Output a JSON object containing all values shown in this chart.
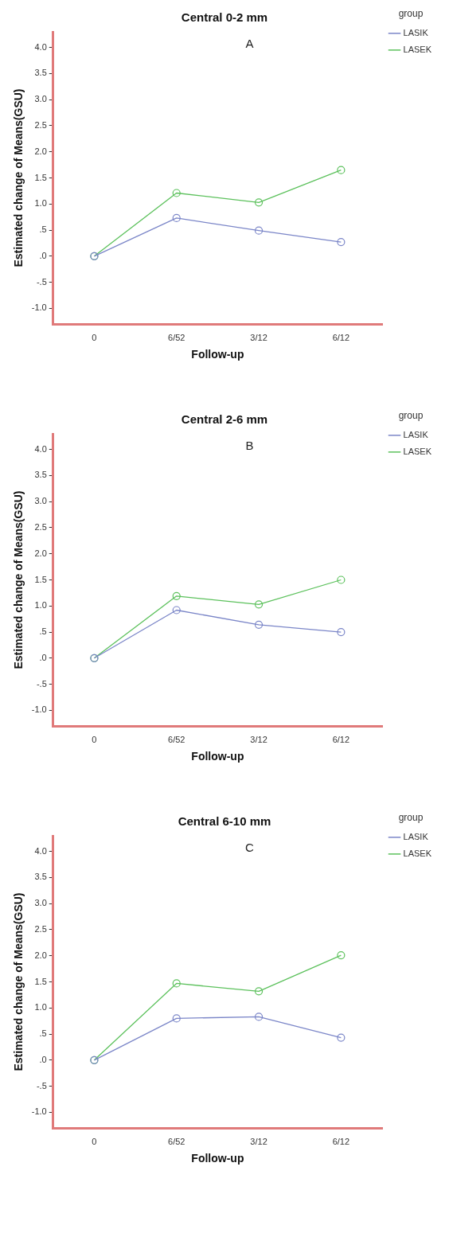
{
  "chart_data": [
    {
      "type": "line",
      "title": "Central 0-2 mm",
      "xlabel": "Follow-up",
      "ylabel": "Estimated change of Means(GSU)",
      "legend_title": "group",
      "annotations": [
        "A"
      ],
      "categories": [
        "0",
        "6/52",
        "3/12",
        "6/12"
      ],
      "series": [
        {
          "name": "LASIK",
          "color": "#7b86c8",
          "values": [
            0,
            0.73,
            0.49,
            0.27
          ]
        },
        {
          "name": "LASEK",
          "color": "#5cc15c",
          "values": [
            0,
            1.21,
            1.03,
            1.65
          ]
        }
      ],
      "ylim": [
        -1.3,
        4.3
      ],
      "yticks": [
        {
          "value": -1,
          "label": "-1.0"
        },
        {
          "value": -0.5,
          "label": "-.5"
        },
        {
          "value": 0,
          "label": ".0"
        },
        {
          "value": 0.5,
          "label": ".5"
        },
        {
          "value": 1,
          "label": "1.0"
        },
        {
          "value": 1.5,
          "label": "1.5"
        },
        {
          "value": 2,
          "label": "2.0"
        },
        {
          "value": 2.5,
          "label": "2.5"
        },
        {
          "value": 3,
          "label": "3.0"
        },
        {
          "value": 3.5,
          "label": "3.5"
        },
        {
          "value": 4,
          "label": "4.0"
        }
      ],
      "legend": "top right",
      "marker": "circle",
      "line_style": "solid"
    },
    {
      "type": "line",
      "title": "Central 2-6 mm",
      "xlabel": "Follow-up",
      "ylabel": "Estimated change of Means(GSU)",
      "legend_title": "group",
      "annotations": [
        "B"
      ],
      "categories": [
        "0",
        "6/52",
        "3/12",
        "6/12"
      ],
      "series": [
        {
          "name": "LASIK",
          "color": "#7b86c8",
          "values": [
            0,
            0.92,
            0.64,
            0.5
          ]
        },
        {
          "name": "LASEK",
          "color": "#5cc15c",
          "values": [
            0,
            1.19,
            1.03,
            1.5
          ]
        }
      ],
      "ylim": [
        -1.3,
        4.3
      ],
      "yticks": [
        {
          "value": -1,
          "label": "-1.0"
        },
        {
          "value": -0.5,
          "label": "-.5"
        },
        {
          "value": 0,
          "label": ".0"
        },
        {
          "value": 0.5,
          "label": ".5"
        },
        {
          "value": 1,
          "label": "1.0"
        },
        {
          "value": 1.5,
          "label": "1.5"
        },
        {
          "value": 2,
          "label": "2.0"
        },
        {
          "value": 2.5,
          "label": "2.5"
        },
        {
          "value": 3,
          "label": "3.0"
        },
        {
          "value": 3.5,
          "label": "3.5"
        },
        {
          "value": 4,
          "label": "4.0"
        }
      ],
      "legend": "top right",
      "marker": "circle",
      "line_style": "solid"
    },
    {
      "type": "line",
      "title": "Central 6-10 mm",
      "xlabel": "Follow-up",
      "ylabel": "Estimated change of Means(GSU)",
      "legend_title": "group",
      "annotations": [
        "C"
      ],
      "categories": [
        "0",
        "6/52",
        "3/12",
        "6/12"
      ],
      "series": [
        {
          "name": "LASIK",
          "color": "#7b86c8",
          "values": [
            0,
            0.8,
            0.83,
            0.43
          ]
        },
        {
          "name": "LASEK",
          "color": "#5cc15c",
          "values": [
            0,
            1.47,
            1.32,
            2.01
          ]
        }
      ],
      "ylim": [
        -1.3,
        4.3
      ],
      "yticks": [
        {
          "value": -1,
          "label": "-1.0"
        },
        {
          "value": -0.5,
          "label": "-.5"
        },
        {
          "value": 0,
          "label": ".0"
        },
        {
          "value": 0.5,
          "label": ".5"
        },
        {
          "value": 1,
          "label": "1.0"
        },
        {
          "value": 1.5,
          "label": "1.5"
        },
        {
          "value": 2,
          "label": "2.0"
        },
        {
          "value": 2.5,
          "label": "2.5"
        },
        {
          "value": 3,
          "label": "3.0"
        },
        {
          "value": 3.5,
          "label": "3.5"
        },
        {
          "value": 4,
          "label": "4.0"
        }
      ],
      "legend": "top right",
      "marker": "circle",
      "line_style": "solid"
    }
  ]
}
